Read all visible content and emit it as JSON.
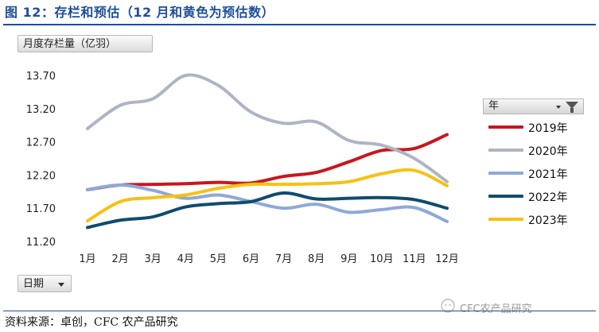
{
  "figure": {
    "title": "图 12：存栏和预估（12 月和黄色为预估数）",
    "source": "资料来源：卓创，CFC 农产品研究",
    "watermark": "CFC农产品研究"
  },
  "pivot": {
    "unit_button": "月度存栏量（亿羽）",
    "date_button": "日期",
    "legend_header": "年"
  },
  "chart_data": {
    "type": "line",
    "categories": [
      "1月",
      "2月",
      "3月",
      "4月",
      "5月",
      "6月",
      "7月",
      "8月",
      "9月",
      "10月",
      "11月",
      "12月"
    ],
    "y_ticks": [
      "13.70",
      "13.20",
      "12.70",
      "12.20",
      "11.70",
      "11.20"
    ],
    "ylim": [
      11.2,
      13.7
    ],
    "legend_position": "right",
    "grid": false,
    "series": [
      {
        "name": "2019年",
        "color": "#c8161d",
        "values": [
          11.98,
          12.05,
          12.06,
          12.07,
          12.09,
          12.08,
          12.18,
          12.24,
          12.4,
          12.57,
          12.6,
          12.81
        ]
      },
      {
        "name": "2020年",
        "color": "#adb5c4",
        "values": [
          12.9,
          13.25,
          13.35,
          13.7,
          13.55,
          13.15,
          12.98,
          13.0,
          12.72,
          12.65,
          12.45,
          12.1
        ]
      },
      {
        "name": "2021年",
        "color": "#8ea8d8",
        "values": [
          11.98,
          12.05,
          11.97,
          11.85,
          11.9,
          11.8,
          11.7,
          11.76,
          11.64,
          11.68,
          11.71,
          11.5
        ]
      },
      {
        "name": "2022年",
        "color": "#0f4c6e",
        "values": [
          11.41,
          11.52,
          11.57,
          11.72,
          11.77,
          11.8,
          11.93,
          11.84,
          11.85,
          11.86,
          11.83,
          11.7
        ]
      },
      {
        "name": "2023年",
        "color": "#f7c114",
        "values": [
          11.51,
          11.8,
          11.86,
          11.9,
          12.0,
          12.06,
          12.06,
          12.07,
          12.1,
          12.22,
          12.27,
          12.04
        ]
      }
    ]
  }
}
